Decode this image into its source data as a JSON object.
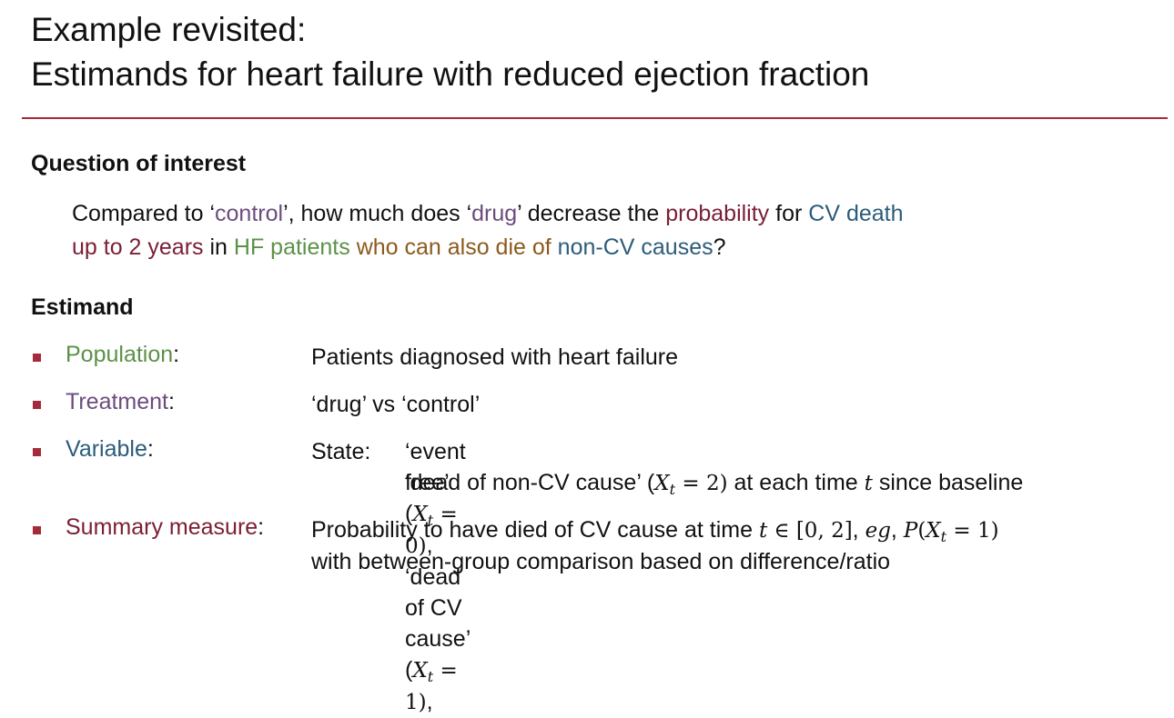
{
  "title": {
    "line1": "Example revisited:",
    "line2": "Estimands for heart failure with reduced ejection fraction"
  },
  "colors": {
    "accent_rule": "#a52a3a",
    "bullet": "#a52a3a",
    "red": "#7a1e35",
    "purple": "#6b4c7e",
    "teal": "#2c5c7a",
    "green": "#5c9148",
    "brown": "#8b5a1e"
  },
  "question": {
    "heading": "Question of interest",
    "p1": "Compared to ‘",
    "control": "control",
    "p2": "’, how much does ‘",
    "drug": "drug",
    "p3": "’ decrease the ",
    "probability": "probability",
    "p4": " for ",
    "cv_death": "CV death",
    "up_to": "up to 2 years",
    "p5": " in ",
    "hf_patients": "HF patients",
    "p6": " ",
    "also_die": "who can also die of",
    "p7": " ",
    "non_cv": "non-CV causes",
    "p8": "?"
  },
  "estimand": {
    "heading": "Estimand",
    "population": {
      "label": "Population",
      "colon": ":",
      "value": "Patients diagnosed with heart failure"
    },
    "treatment": {
      "label": "Treatment",
      "colon": ":",
      "value": "‘drug’ vs ‘control’"
    },
    "variable": {
      "label": "Variable",
      "colon": ":",
      "state_label": "State:",
      "l1a": "‘event free’ (",
      "m1a": "X",
      "m1s": "t",
      "m1b": " = 0)",
      "l1b": ", ‘dead of CV cause’ (",
      "m2a": "X",
      "m2s": "t",
      "m2b": " = 1)",
      "l1c": ",",
      "l2a": "‘dead of non-CV cause’ (",
      "m3a": "X",
      "m3s": "t",
      "m3b": " = 2)",
      "l2b": " at each time ",
      "m4": "t",
      "l2c": " since baseline"
    },
    "summary": {
      "label": "Summary measure",
      "colon": ":",
      "l1a": "Probability to have died of CV cause at time ",
      "m1": "t",
      "m1b": " ∈ [0, 2]",
      "l1b": ", ",
      "eg": "eg",
      "l1c": ", ",
      "m2a": "P",
      "m2b": "(",
      "m2c": "X",
      "m2s": "t",
      "m2d": " = 1)",
      "l2": "with between-group comparison based on difference/ratio"
    }
  }
}
